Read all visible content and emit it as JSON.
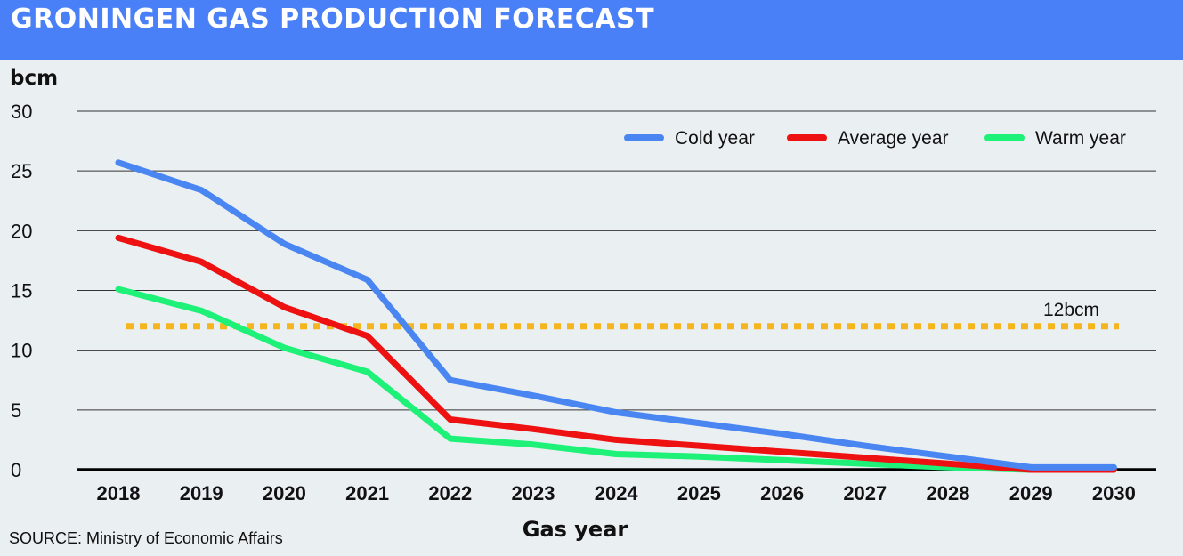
{
  "header": {
    "title": "GRONINGEN GAS PRODUCTION FORECAST"
  },
  "source": "SOURCE: Ministry of Economic Affairs",
  "colors": {
    "title_bar": "#4a80f7",
    "background": "#eaeff1",
    "cold": "#4a86f2",
    "average": "#ee1111",
    "warm": "#1ef178",
    "reference": "#f5b51e"
  },
  "chart_data": {
    "type": "line",
    "title": "GRONINGEN GAS PRODUCTION FORECAST",
    "ylabel": "bcm",
    "xlabel": "Gas year",
    "ylim": [
      0,
      30
    ],
    "yticks": [
      0,
      5,
      10,
      15,
      20,
      25,
      30
    ],
    "grid": true,
    "legend_position": "top-right",
    "categories": [
      "2018",
      "2019",
      "2020",
      "2021",
      "2022",
      "2023",
      "2024",
      "2025",
      "2026",
      "2027",
      "2028",
      "2029",
      "2030"
    ],
    "series": [
      {
        "name": "Cold year",
        "color": "#4a86f2",
        "values": [
          25.7,
          23.4,
          18.9,
          15.9,
          7.5,
          6.2,
          4.8,
          3.9,
          3.0,
          2.0,
          1.1,
          0.2,
          0.2
        ]
      },
      {
        "name": "Average year",
        "color": "#ee1111",
        "values": [
          19.4,
          17.4,
          13.6,
          11.2,
          4.2,
          3.4,
          2.5,
          2.0,
          1.5,
          1.0,
          0.5,
          0.0,
          0.0
        ]
      },
      {
        "name": "Warm year",
        "color": "#1ef178",
        "values": [
          15.1,
          13.3,
          10.2,
          8.2,
          2.6,
          2.1,
          1.3,
          1.1,
          0.8,
          0.5,
          0.2,
          0.0,
          0.0
        ]
      }
    ],
    "reference_line": {
      "value": 12,
      "label": "12bcm",
      "style": "dotted",
      "color": "#f5b51e"
    }
  }
}
